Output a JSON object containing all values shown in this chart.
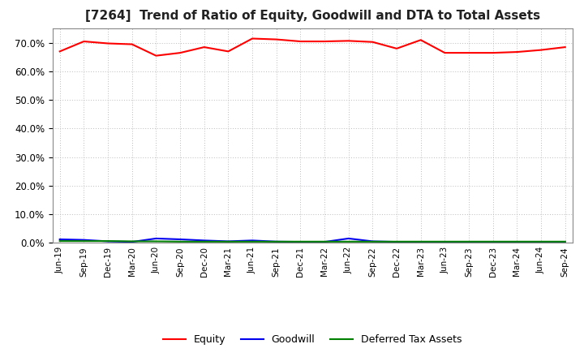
{
  "title": "[7264]  Trend of Ratio of Equity, Goodwill and DTA to Total Assets",
  "x_labels": [
    "Jun-19",
    "Sep-19",
    "Dec-19",
    "Mar-20",
    "Jun-20",
    "Sep-20",
    "Dec-20",
    "Mar-21",
    "Jun-21",
    "Sep-21",
    "Dec-21",
    "Mar-22",
    "Jun-22",
    "Sep-22",
    "Dec-22",
    "Mar-23",
    "Jun-23",
    "Sep-23",
    "Dec-23",
    "Mar-24",
    "Jun-24",
    "Sep-24"
  ],
  "equity": [
    67.0,
    70.5,
    69.8,
    69.5,
    65.5,
    66.5,
    68.5,
    67.0,
    71.5,
    71.2,
    70.5,
    70.5,
    70.7,
    70.3,
    68.0,
    71.0,
    66.5,
    66.5,
    66.5,
    66.8,
    67.5,
    68.5
  ],
  "goodwill": [
    1.2,
    1.0,
    0.5,
    0.3,
    1.5,
    1.2,
    0.8,
    0.5,
    0.8,
    0.4,
    0.3,
    0.3,
    1.5,
    0.5,
    0.3,
    0.2,
    0.2,
    0.2,
    0.2,
    0.2,
    0.2,
    0.2
  ],
  "dta": [
    0.6,
    0.6,
    0.6,
    0.5,
    0.5,
    0.4,
    0.4,
    0.4,
    0.4,
    0.4,
    0.4,
    0.4,
    0.4,
    0.4,
    0.4,
    0.4,
    0.4,
    0.4,
    0.4,
    0.4,
    0.4,
    0.4
  ],
  "equity_color": "#FF0000",
  "goodwill_color": "#0000EE",
  "dta_color": "#008000",
  "ylim": [
    0.0,
    75.0
  ],
  "yticks": [
    0.0,
    10.0,
    20.0,
    30.0,
    40.0,
    50.0,
    60.0,
    70.0
  ],
  "bg_color": "#FFFFFF",
  "grid_color": "#BBBBBB",
  "title_fontsize": 11,
  "legend_labels": [
    "Equity",
    "Goodwill",
    "Deferred Tax Assets"
  ]
}
